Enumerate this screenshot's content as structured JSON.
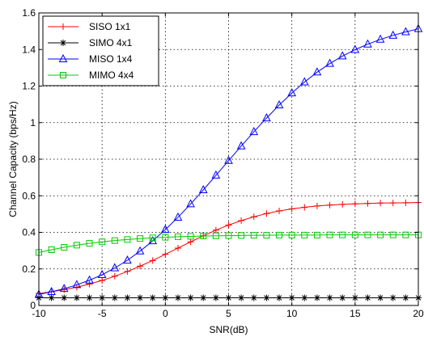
{
  "chart_data": {
    "type": "line",
    "xlabel": "SNR(dB)",
    "ylabel": "Channel Capacity (bps/Hz)",
    "xlim": [
      -10,
      20
    ],
    "ylim": [
      0,
      1.6
    ],
    "xticks": [
      "-10",
      "-5",
      "0",
      "5",
      "10",
      "15",
      "20"
    ],
    "yticks": [
      "0",
      "0.2",
      "0.4",
      "0.6",
      "0.8",
      "1",
      "1.2",
      "1.4",
      "1.6"
    ],
    "grid": true,
    "grid_style": "dotted",
    "legend_position": "top-left",
    "x": [
      -10,
      -9,
      -8,
      -7,
      -6,
      -5,
      -4,
      -3,
      -2,
      -1,
      0,
      1,
      2,
      3,
      4,
      5,
      6,
      7,
      8,
      9,
      10,
      11,
      12,
      13,
      14,
      15,
      16,
      17,
      18,
      19,
      20
    ],
    "series": [
      {
        "name": "SISO 1x1",
        "color": "#ff0000",
        "marker": "plus",
        "marker_step": 1,
        "values": [
          0.065,
          0.075,
          0.087,
          0.1,
          0.117,
          0.137,
          0.16,
          0.186,
          0.215,
          0.246,
          0.28,
          0.314,
          0.348,
          0.381,
          0.412,
          0.44,
          0.464,
          0.485,
          0.503,
          0.517,
          0.528,
          0.537,
          0.544,
          0.549,
          0.553,
          0.556,
          0.558,
          0.56,
          0.561,
          0.562,
          0.563
        ]
      },
      {
        "name": "SIMO 4x1",
        "color": "#000000",
        "marker": "asterisk",
        "marker_step": 1,
        "values": [
          0.042,
          0.042,
          0.042,
          0.042,
          0.042,
          0.042,
          0.042,
          0.042,
          0.042,
          0.042,
          0.042,
          0.042,
          0.042,
          0.042,
          0.042,
          0.042,
          0.042,
          0.042,
          0.042,
          0.042,
          0.042,
          0.042,
          0.042,
          0.042,
          0.042,
          0.042,
          0.042,
          0.042,
          0.042,
          0.042,
          0.042
        ]
      },
      {
        "name": "MISO 1x4",
        "color": "#0000ff",
        "marker": "triangle",
        "marker_step": 1,
        "values": [
          0.06,
          0.075,
          0.092,
          0.113,
          0.138,
          0.168,
          0.205,
          0.247,
          0.297,
          0.353,
          0.415,
          0.482,
          0.555,
          0.632,
          0.712,
          0.792,
          0.872,
          0.95,
          1.025,
          1.096,
          1.162,
          1.222,
          1.276,
          1.323,
          1.364,
          1.399,
          1.429,
          1.455,
          1.477,
          1.496,
          1.513
        ]
      },
      {
        "name": "MIMO 4x4",
        "color": "#00cc00",
        "marker": "square",
        "marker_step": 1,
        "values": [
          0.29,
          0.305,
          0.318,
          0.33,
          0.34,
          0.348,
          0.355,
          0.361,
          0.366,
          0.37,
          0.373,
          0.376,
          0.378,
          0.38,
          0.381,
          0.382,
          0.383,
          0.384,
          0.384,
          0.385,
          0.385,
          0.385,
          0.385,
          0.386,
          0.386,
          0.386,
          0.386,
          0.386,
          0.386,
          0.386,
          0.386
        ]
      }
    ]
  }
}
